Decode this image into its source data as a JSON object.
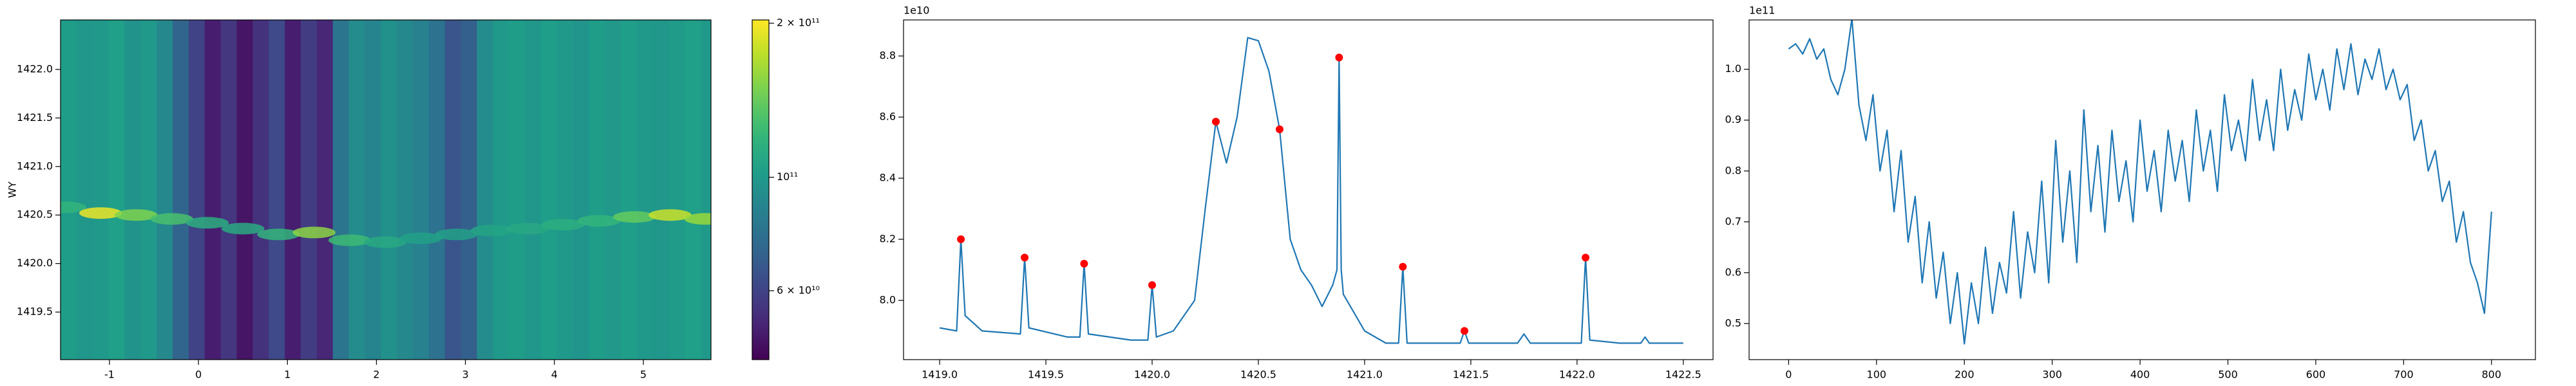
{
  "chart_data": [
    {
      "type": "heatmap",
      "ylabel": "WY",
      "xlim": [
        -1.55,
        5.76
      ],
      "ylim": [
        1419.01,
        1422.51
      ],
      "xticks": [
        -1,
        0,
        1,
        2,
        3,
        4,
        5
      ],
      "yticks": [
        1419.5,
        {
          "value": 1420,
          "label": "1420.0"
        },
        1420.5,
        {
          "value": 1421,
          "label": "1421.0"
        },
        1421.5,
        {
          "value": 1422,
          "label": "1422.0"
        }
      ],
      "clim": [
        44000000000.0,
        203000000000.0
      ],
      "colorbar_scale": "log",
      "colorbar_ticks": [
        {
          "value": 200000000000.0,
          "label": "2 × 10¹¹"
        },
        {
          "value": 100000000000.0,
          "label": "10¹¹"
        },
        {
          "value": 60000000000.0,
          "label": "6 × 10¹⁰"
        }
      ],
      "x": [
        -1.46,
        -1.28,
        -1.1,
        -0.92,
        -0.74,
        -0.56,
        -0.38,
        -0.2,
        -0.02,
        0.16,
        0.34,
        0.52,
        0.7,
        0.88,
        1.06,
        1.24,
        1.42,
        1.6,
        1.78,
        1.96,
        2.14,
        2.32,
        2.5,
        2.68,
        2.86,
        3.04,
        3.22,
        3.4,
        3.58,
        3.76,
        3.94,
        4.12,
        4.3,
        4.48,
        4.66,
        4.84,
        5.02,
        5.2,
        5.38,
        5.56,
        5.74
      ],
      "values": [
        102000000000.0,
        98000000000.0,
        100000000000.0,
        104000000000.0,
        96000000000.0,
        100000000000.0,
        90000000000.0,
        72000000000.0,
        60000000000.0,
        50000000000.0,
        56000000000.0,
        48000000000.0,
        55000000000.0,
        62000000000.0,
        50000000000.0,
        58000000000.0,
        52000000000.0,
        80000000000.0,
        92000000000.0,
        88000000000.0,
        95000000000.0,
        90000000000.0,
        86000000000.0,
        78000000000.0,
        66000000000.0,
        70000000000.0,
        92000000000.0,
        100000000000.0,
        102000000000.0,
        98000000000.0,
        103000000000.0,
        100000000000.0,
        97000000000.0,
        102000000000.0,
        99000000000.0,
        103000000000.0,
        100000000000.0,
        98000000000.0,
        101000000000.0,
        104000000000.0,
        100000000000.0
      ],
      "ridge": {
        "x": [
          -1.5,
          -1.1,
          -0.7,
          -0.3,
          0.1,
          0.5,
          0.9,
          1.3,
          1.7,
          2.1,
          2.5,
          2.9,
          3.3,
          3.7,
          4.1,
          4.5,
          4.9,
          5.3,
          5.7
        ],
        "y": [
          1420.58,
          1420.52,
          1420.5,
          1420.46,
          1420.42,
          1420.36,
          1420.3,
          1420.32,
          1420.24,
          1420.22,
          1420.26,
          1420.3,
          1420.34,
          1420.36,
          1420.4,
          1420.44,
          1420.48,
          1420.5,
          1420.46
        ],
        "values": [
          120000000000.0,
          195000000000.0,
          150000000000.0,
          130000000000.0,
          115000000000.0,
          112000000000.0,
          120000000000.0,
          155000000000.0,
          125000000000.0,
          110000000000.0,
          105000000000.0,
          105000000000.0,
          108000000000.0,
          110000000000.0,
          115000000000.0,
          120000000000.0,
          140000000000.0,
          180000000000.0,
          160000000000.0
        ]
      }
    },
    {
      "type": "line",
      "y_offset_label": "1e10",
      "xlim": [
        1418.83,
        1422.64
      ],
      "ylim": [
        7.806,
        8.918
      ],
      "xticks": [
        {
          "value": 1419,
          "label": "1419.0"
        },
        1419.5,
        {
          "value": 1420,
          "label": "1420.0"
        },
        1420.5,
        {
          "value": 1421,
          "label": "1421.0"
        },
        1421.5,
        {
          "value": 1422,
          "label": "1422.0"
        },
        1422.5
      ],
      "yticks": [
        {
          "value": 8,
          "label": "8.0"
        },
        8.2,
        8.4,
        8.6,
        8.8
      ],
      "series": [
        {
          "color": "#1f77b4",
          "x": [
            1419.0,
            1419.08,
            1419.1,
            1419.12,
            1419.2,
            1419.38,
            1419.4,
            1419.42,
            1419.6,
            1419.66,
            1419.68,
            1419.7,
            1419.9,
            1419.98,
            1420.0,
            1420.02,
            1420.1,
            1420.2,
            1420.25,
            1420.3,
            1420.35,
            1420.4,
            1420.45,
            1420.5,
            1420.55,
            1420.6,
            1420.65,
            1420.7,
            1420.75,
            1420.8,
            1420.85,
            1420.87,
            1420.88,
            1420.89,
            1420.9,
            1421.0,
            1421.1,
            1421.16,
            1421.18,
            1421.2,
            1421.3,
            1421.45,
            1421.47,
            1421.49,
            1421.6,
            1421.72,
            1421.75,
            1421.78,
            1421.9,
            1422.02,
            1422.04,
            1422.06,
            1422.2,
            1422.3,
            1422.32,
            1422.34,
            1422.5
          ],
          "values": [
            7.91,
            7.9,
            8.2,
            7.95,
            7.9,
            7.89,
            8.14,
            7.91,
            7.88,
            7.88,
            8.12,
            7.89,
            7.87,
            7.87,
            8.05,
            7.88,
            7.9,
            8.0,
            8.3,
            8.585,
            8.45,
            8.6,
            8.86,
            8.85,
            8.75,
            8.56,
            8.2,
            8.1,
            8.05,
            7.98,
            8.05,
            8.1,
            8.795,
            8.1,
            8.02,
            7.9,
            7.86,
            7.86,
            8.11,
            7.86,
            7.86,
            7.86,
            7.9,
            7.86,
            7.86,
            7.86,
            7.89,
            7.86,
            7.86,
            7.86,
            8.14,
            7.87,
            7.86,
            7.86,
            7.88,
            7.86,
            7.86
          ]
        },
        {
          "type": "scatter",
          "color": "#ff0000",
          "x": [
            1419.1,
            1419.4,
            1419.68,
            1420.0,
            1420.3,
            1420.6,
            1420.88,
            1421.18,
            1421.47,
            1422.04
          ],
          "values": [
            8.2,
            8.14,
            8.12,
            8.05,
            8.585,
            8.56,
            8.795,
            8.11,
            7.9,
            8.14
          ]
        }
      ]
    },
    {
      "type": "line",
      "y_offset_label": "1e11",
      "xlim": [
        -45,
        850
      ],
      "ylim": [
        0.429,
        1.097
      ],
      "xticks": [
        0,
        100,
        200,
        300,
        400,
        500,
        600,
        700,
        800
      ],
      "yticks": [
        0.5,
        0.6,
        0.7,
        0.8,
        0.9,
        {
          "value": 1,
          "label": "1.0"
        }
      ],
      "series": [
        {
          "color": "#1f77b4",
          "x": [
            0,
            8,
            16,
            24,
            32,
            40,
            48,
            56,
            64,
            72,
            80,
            88,
            96,
            104,
            112,
            120,
            128,
            136,
            144,
            152,
            160,
            168,
            176,
            184,
            192,
            200,
            208,
            216,
            224,
            232,
            240,
            248,
            256,
            264,
            272,
            280,
            288,
            296,
            304,
            312,
            320,
            328,
            336,
            344,
            352,
            360,
            368,
            376,
            384,
            392,
            400,
            408,
            416,
            424,
            432,
            440,
            448,
            456,
            464,
            472,
            480,
            488,
            496,
            504,
            512,
            520,
            528,
            536,
            544,
            552,
            560,
            568,
            576,
            584,
            592,
            600,
            608,
            616,
            624,
            632,
            640,
            648,
            656,
            664,
            672,
            680,
            688,
            696,
            704,
            712,
            720,
            728,
            736,
            744,
            752,
            760,
            768,
            776,
            784,
            792,
            800
          ],
          "values": [
            1.04,
            1.05,
            1.03,
            1.06,
            1.02,
            1.04,
            0.98,
            0.95,
            1.0,
            1.1,
            0.93,
            0.86,
            0.95,
            0.8,
            0.88,
            0.72,
            0.84,
            0.66,
            0.75,
            0.58,
            0.7,
            0.55,
            0.64,
            0.5,
            0.6,
            0.46,
            0.58,
            0.5,
            0.65,
            0.52,
            0.62,
            0.56,
            0.72,
            0.55,
            0.68,
            0.6,
            0.78,
            0.58,
            0.86,
            0.66,
            0.8,
            0.62,
            0.92,
            0.72,
            0.85,
            0.68,
            0.88,
            0.74,
            0.82,
            0.7,
            0.9,
            0.76,
            0.84,
            0.72,
            0.88,
            0.78,
            0.86,
            0.74,
            0.92,
            0.8,
            0.88,
            0.76,
            0.95,
            0.84,
            0.9,
            0.82,
            0.98,
            0.86,
            0.94,
            0.84,
            1.0,
            0.88,
            0.96,
            0.9,
            1.03,
            0.94,
            1.0,
            0.92,
            1.04,
            0.96,
            1.05,
            0.95,
            1.02,
            0.98,
            1.04,
            0.96,
            1.0,
            0.94,
            0.97,
            0.86,
            0.9,
            0.8,
            0.84,
            0.74,
            0.78,
            0.66,
            0.72,
            0.62,
            0.58,
            0.52,
            0.72
          ]
        }
      ]
    }
  ]
}
